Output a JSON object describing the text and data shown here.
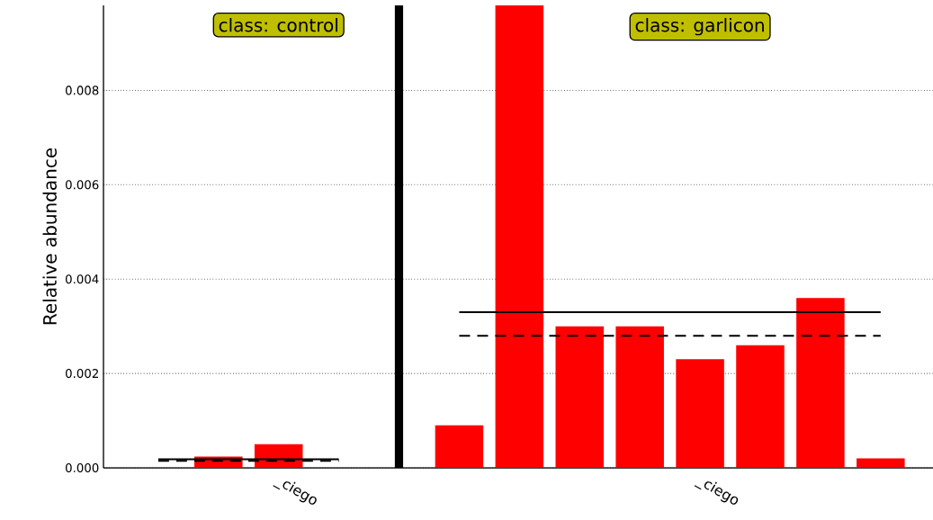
{
  "chart_data": {
    "type": "bar",
    "ylabel": "Relative abundance",
    "categories": [
      null,
      null,
      "_ciego",
      null,
      null,
      null,
      null,
      null,
      null,
      "_ciego",
      null,
      null,
      null
    ],
    "series": [
      {
        "color": "#ff0000",
        "values": [
          0,
          0.00024,
          0.0005,
          0,
          null,
          0.0009,
          0.0098,
          0.003,
          0.003,
          0.0023,
          0.0026,
          0.0036,
          0.0002
        ]
      },
      {
        "type": "line",
        "color": "#000000",
        "line_style": "solid",
        "values": [
          0.00018,
          0.00018,
          0.00018,
          0.00018,
          null,
          null,
          null,
          null,
          null,
          null,
          null,
          null,
          null
        ]
      },
      {
        "type": "line",
        "color": "#000000",
        "line_style": "dashed",
        "values": [
          0.00015,
          0.00015,
          0.00015,
          0.00015,
          null,
          null,
          null,
          null,
          null,
          null,
          null,
          null,
          null
        ]
      },
      {
        "type": "line",
        "color": "#000000",
        "line_style": "solid",
        "values": [
          null,
          null,
          null,
          null,
          null,
          0.0033,
          0.0033,
          0.0033,
          0.0033,
          0.0033,
          0.0033,
          0.0033,
          0.0033
        ]
      },
      {
        "type": "line",
        "color": "#000000",
        "line_style": "dashed",
        "values": [
          null,
          null,
          null,
          null,
          null,
          0.0028,
          0.0028,
          0.0028,
          0.0028,
          0.0028,
          0.0028,
          0.0028,
          0.0028
        ]
      }
    ],
    "ylim": [
      0,
      0.0098
    ],
    "yticks": [
      {
        "value": 0,
        "label": "0.000"
      },
      {
        "value": 0.002,
        "label": "0.002"
      },
      {
        "value": 0.004,
        "label": "0.004"
      },
      {
        "value": 0.006,
        "label": "0.006"
      },
      {
        "value": 0.008,
        "label": "0.008"
      }
    ],
    "grid": "y",
    "annotations": [
      "class: control",
      "class: garlicon"
    ]
  }
}
